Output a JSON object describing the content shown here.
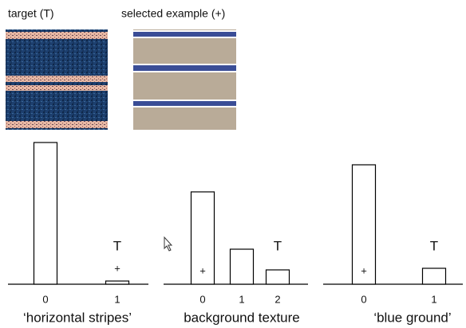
{
  "header": {
    "target_caption": "target (T)",
    "selected_caption": "selected example (+)"
  },
  "chart_data": [
    {
      "type": "bar",
      "title": "‘horizontal stripes’",
      "categories": [
        "0",
        "1"
      ],
      "values": [
        178,
        4
      ],
      "color": "#ffffff",
      "target_marker": "T",
      "target_index": 1,
      "selected_marker": "+",
      "selected_index": 1
    },
    {
      "type": "bar",
      "title": "background texture",
      "categories": [
        "0",
        "1",
        "2"
      ],
      "values": [
        116,
        44,
        18
      ],
      "color": "#ffffff",
      "target_marker": "T",
      "target_index": 2,
      "selected_marker": "+",
      "selected_index": 0
    },
    {
      "type": "bar",
      "title": "‘blue ground’",
      "categories": [
        "0",
        "1"
      ],
      "values": [
        150,
        20
      ],
      "color": "#ffffff",
      "target_marker": "T",
      "target_index": 1,
      "selected_marker": "+",
      "selected_index": 0
    }
  ]
}
